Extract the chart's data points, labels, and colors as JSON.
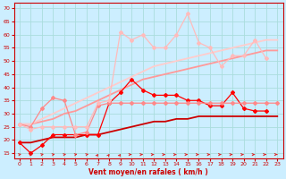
{
  "xlabel": "Vent moyen/en rafales ( km/h )",
  "bg_color": "#cceeff",
  "grid_color": "#aadddd",
  "ylim": [
    13,
    72
  ],
  "xlim": [
    -0.5,
    23.5
  ],
  "yticks": [
    15,
    20,
    25,
    30,
    35,
    40,
    45,
    50,
    55,
    60,
    65,
    70
  ],
  "xticks": [
    0,
    1,
    2,
    3,
    4,
    5,
    6,
    7,
    8,
    9,
    10,
    11,
    12,
    13,
    14,
    15,
    16,
    17,
    18,
    19,
    20,
    21,
    22,
    23
  ],
  "lines": [
    {
      "x": [
        0,
        1,
        2,
        3,
        4,
        5,
        6,
        7,
        8,
        9,
        10,
        11,
        12,
        13,
        14,
        15,
        16,
        17,
        18,
        19,
        20,
        21,
        22
      ],
      "y": [
        19,
        15,
        18,
        22,
        22,
        22,
        22,
        22,
        34,
        38,
        43,
        39,
        37,
        37,
        37,
        35,
        35,
        33,
        33,
        38,
        32,
        31,
        31
      ],
      "color": "#ff0000",
      "lw": 0.9,
      "marker": "D",
      "ms": 2.0,
      "style": "-"
    },
    {
      "x": [
        0,
        1,
        2,
        3,
        4,
        5,
        6,
        7,
        8,
        9,
        10,
        11,
        12,
        13,
        14,
        15,
        16,
        17,
        18,
        19,
        20,
        21,
        22,
        23
      ],
      "y": [
        26,
        25,
        32,
        36,
        35,
        22,
        23,
        33,
        34,
        34,
        34,
        34,
        34,
        34,
        34,
        34,
        34,
        34,
        34,
        34,
        34,
        34,
        34,
        34
      ],
      "color": "#ff8888",
      "lw": 0.9,
      "marker": "D",
      "ms": 2.0,
      "style": "-"
    },
    {
      "x": [
        0,
        1,
        2,
        3,
        4,
        5,
        6,
        7,
        8,
        9,
        10,
        11,
        12,
        13,
        14,
        15,
        16,
        17,
        18,
        19,
        20,
        21,
        22
      ],
      "y": [
        26,
        24,
        25,
        25,
        25,
        25,
        25,
        34,
        35,
        61,
        58,
        60,
        55,
        55,
        60,
        68,
        57,
        55,
        48,
        52,
        52,
        58,
        51
      ],
      "color": "#ffbbbb",
      "lw": 0.9,
      "marker": "D",
      "ms": 2.0,
      "style": "-"
    },
    {
      "x": [
        0,
        1,
        2,
        3,
        4,
        5,
        6,
        7,
        8,
        9,
        10,
        11,
        12,
        13,
        14,
        15,
        16,
        17,
        18,
        19,
        20,
        21,
        22,
        23
      ],
      "y": [
        19,
        19,
        20,
        21,
        21,
        21,
        22,
        22,
        23,
        24,
        25,
        26,
        27,
        27,
        28,
        28,
        29,
        29,
        29,
        29,
        29,
        29,
        29,
        29
      ],
      "color": "#cc0000",
      "lw": 1.3,
      "marker": null,
      "ms": 0,
      "style": "-"
    },
    {
      "x": [
        0,
        1,
        2,
        3,
        4,
        5,
        6,
        7,
        8,
        9,
        10,
        11,
        12,
        13,
        14,
        15,
        16,
        17,
        18,
        19,
        20,
        21,
        22,
        23
      ],
      "y": [
        26,
        26,
        27,
        28,
        30,
        31,
        33,
        35,
        37,
        39,
        41,
        43,
        44,
        45,
        46,
        47,
        48,
        49,
        50,
        51,
        52,
        53,
        54,
        54
      ],
      "color": "#ff9999",
      "lw": 1.3,
      "marker": null,
      "ms": 0,
      "style": "-"
    },
    {
      "x": [
        0,
        1,
        2,
        3,
        4,
        5,
        6,
        7,
        8,
        9,
        10,
        11,
        12,
        13,
        14,
        15,
        16,
        17,
        18,
        19,
        20,
        21,
        22,
        23
      ],
      "y": [
        26,
        26,
        28,
        30,
        32,
        34,
        36,
        38,
        40,
        42,
        44,
        46,
        48,
        49,
        50,
        51,
        52,
        53,
        54,
        55,
        56,
        57,
        58,
        58
      ],
      "color": "#ffcccc",
      "lw": 1.3,
      "marker": null,
      "ms": 0,
      "style": "-"
    }
  ],
  "arrow_directions": [
    45,
    45,
    45,
    45,
    45,
    45,
    45,
    80,
    80,
    80,
    10,
    10,
    10,
    10,
    10,
    10,
    10,
    10,
    10,
    10,
    10,
    10,
    5,
    5
  ],
  "arrow_color": "#dd2222"
}
